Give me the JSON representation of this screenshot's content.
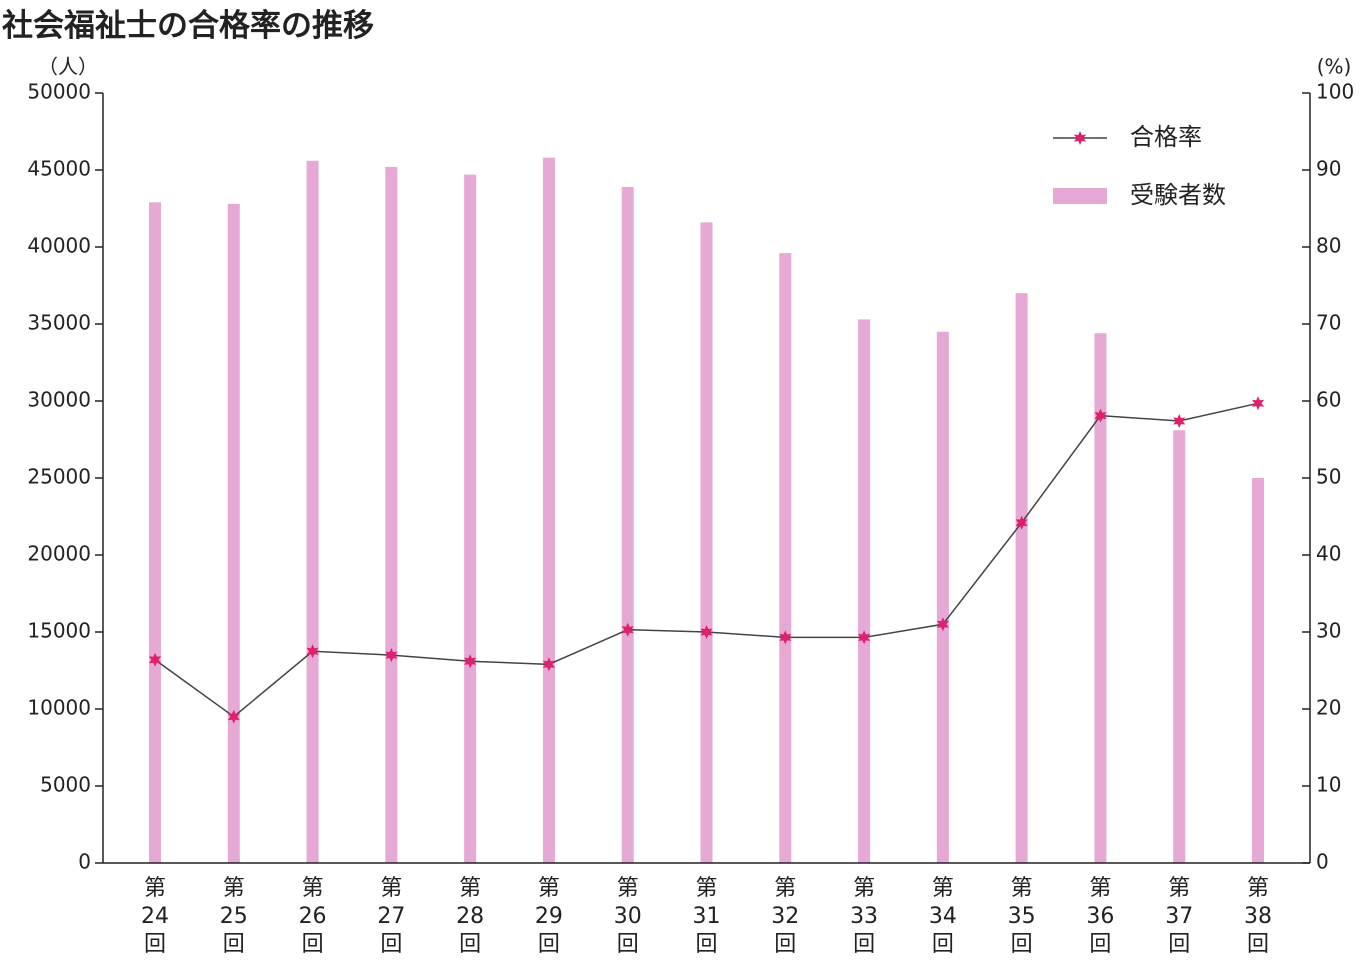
{
  "chart_data": {
    "type": "bar-line",
    "title": "社会福祉士の合格率の推移",
    "y_axis_label": "（人）",
    "y2_axis_label": "(%)",
    "categories": [
      [
        "第",
        "24",
        "回"
      ],
      [
        "第",
        "25",
        "回"
      ],
      [
        "第",
        "26",
        "回"
      ],
      [
        "第",
        "27",
        "回"
      ],
      [
        "第",
        "28",
        "回"
      ],
      [
        "第",
        "29",
        "回"
      ],
      [
        "第",
        "30",
        "回"
      ],
      [
        "第",
        "31",
        "回"
      ],
      [
        "第",
        "32",
        "回"
      ],
      [
        "第",
        "33",
        "回"
      ],
      [
        "第",
        "34",
        "回"
      ],
      [
        "第",
        "35",
        "回"
      ],
      [
        "第",
        "36",
        "回"
      ],
      [
        "第",
        "37",
        "回"
      ],
      [
        "第",
        "38",
        "回"
      ]
    ],
    "series": [
      {
        "name": "合格率",
        "type": "line",
        "axis": "y2",
        "color": "#444444",
        "marker_color": "#e0206a",
        "values": [
          26.4,
          19.0,
          27.5,
          27.0,
          26.2,
          25.8,
          30.3,
          30.0,
          29.3,
          29.3,
          31.0,
          44.2,
          58.1,
          57.4,
          59.7
        ]
      },
      {
        "name": "受験者数",
        "type": "bar",
        "axis": "y",
        "color": "#e6a8d5",
        "values": [
          42900,
          42800,
          45600,
          45200,
          44700,
          45800,
          43900,
          41600,
          39600,
          35300,
          34500,
          37000,
          34400,
          28100,
          25000
        ]
      }
    ],
    "ylim": [
      0,
      50000
    ],
    "yticks": [
      0,
      5000,
      10000,
      15000,
      20000,
      25000,
      30000,
      35000,
      40000,
      45000,
      50000
    ],
    "y2lim": [
      0,
      100
    ],
    "y2ticks": [
      0,
      10,
      20,
      30,
      40,
      50,
      60,
      70,
      80,
      90,
      100
    ],
    "legend_position": "upper right"
  }
}
